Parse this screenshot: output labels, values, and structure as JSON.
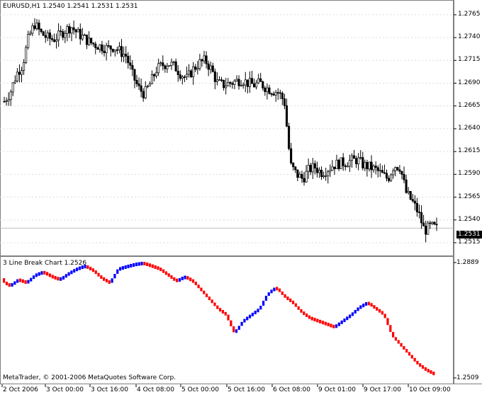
{
  "main_chart": {
    "title": "EURUSD,H1  1.2540 1.2541 1.2531 1.2531",
    "price_ticks": [
      "1.2765",
      "1.2740",
      "1.2715",
      "1.2690",
      "1.2665",
      "1.2640",
      "1.2615",
      "1.2590",
      "1.2565",
      "1.2540",
      "1.2515"
    ],
    "current_price": "1.2531"
  },
  "indicator": {
    "title": "3 Line Break Chart 1.2526",
    "top_value": "1.2889",
    "bottom_value": "1.2509",
    "copyright": "MetaTrader, © 2001-2006 MetaQuotes Software Corp."
  },
  "time_axis": [
    "2 Oct 2006",
    "3 Oct 00:00",
    "3 Oct 16:00",
    "4 Oct 08:00",
    "5 Oct 00:00",
    "5 Oct 16:00",
    "6 Oct 08:00",
    "9 Oct 01:00",
    "9 Oct 17:00",
    "10 Oct 09:00"
  ],
  "colors": {
    "up": "#0000ff",
    "down": "#ff0000",
    "candle": "#000000",
    "grid": "#c0c0c0"
  },
  "chart_data": [
    {
      "type": "candlestick",
      "title": "EURUSD,H1  1.2540 1.2541 1.2531 1.2531",
      "ylim": [
        1.2508,
        1.2775
      ],
      "x": [
        "2 Oct 2006",
        "3 Oct 00:00",
        "3 Oct 16:00",
        "4 Oct 08:00",
        "5 Oct 00:00",
        "5 Oct 16:00",
        "6 Oct 08:00",
        "9 Oct 01:00",
        "9 Oct 17:00",
        "10 Oct 09:00"
      ],
      "close_trace": [
        1.267,
        1.268,
        1.27,
        1.271,
        1.274,
        1.2755,
        1.2745,
        1.274,
        1.2738,
        1.2742,
        1.2748,
        1.2752,
        1.2745,
        1.274,
        1.2735,
        1.2732,
        1.273,
        1.2728,
        1.273,
        1.2725,
        1.272,
        1.27,
        1.2685,
        1.2678,
        1.269,
        1.2705,
        1.271,
        1.2712,
        1.2708,
        1.27,
        1.2695,
        1.2705,
        1.2712,
        1.2715,
        1.2705,
        1.269,
        1.2688,
        1.269,
        1.2692,
        1.2694,
        1.269,
        1.2688,
        1.269,
        1.2685,
        1.2682,
        1.268,
        1.267,
        1.26,
        1.259,
        1.2585,
        1.2595,
        1.2598,
        1.2592,
        1.2595,
        1.26,
        1.2602,
        1.2603,
        1.2605,
        1.2606,
        1.26,
        1.2598,
        1.2595,
        1.259,
        1.2585,
        1.26,
        1.2598,
        1.257,
        1.256,
        1.2548,
        1.2528,
        1.2533,
        1.2531
      ],
      "y_axis": "price"
    },
    {
      "type": "bar",
      "title": "3 Line Break Chart 1.2526",
      "ylim": [
        1.2509,
        1.2889
      ],
      "series": [
        {
          "name": "up",
          "color": "#0000ff"
        },
        {
          "name": "down",
          "color": "#ff0000"
        }
      ],
      "levels_trace": [
        1.283,
        1.2815,
        1.2835,
        1.2825,
        1.285,
        1.286,
        1.2845,
        1.2835,
        1.2855,
        1.287,
        1.288,
        1.2865,
        1.284,
        1.2825,
        1.287,
        1.2878,
        1.2885,
        1.2889,
        1.288,
        1.287,
        1.285,
        1.283,
        1.2845,
        1.283,
        1.28,
        1.277,
        1.274,
        1.272,
        1.266,
        1.27,
        1.272,
        1.274,
        1.279,
        1.281,
        1.278,
        1.276,
        1.273,
        1.271,
        1.27,
        1.269,
        1.268,
        1.27,
        1.272,
        1.2745,
        1.276,
        1.274,
        1.272,
        1.265,
        1.262,
        1.259,
        1.256,
        1.254,
        1.2526
      ]
    }
  ]
}
